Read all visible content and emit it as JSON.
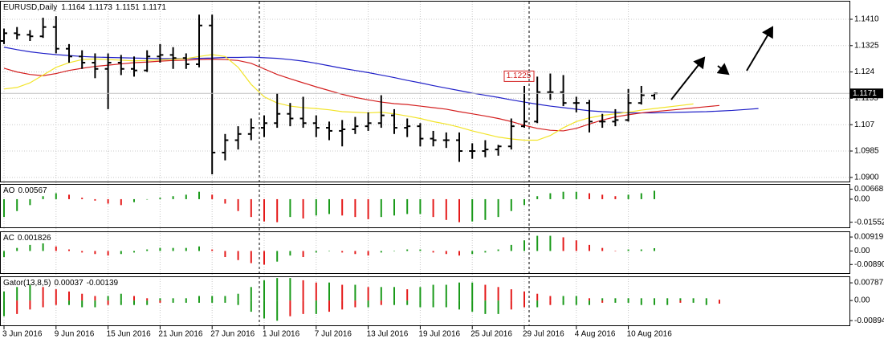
{
  "chart_data": [
    {
      "type": "ohlc",
      "title": "EURUSD,Daily",
      "categories": [
        "3 Jun 2016",
        null,
        null,
        null,
        "9 Jun 2016",
        null,
        null,
        null,
        "15 Jun 2016",
        null,
        null,
        null,
        "21 Jun 2016",
        null,
        null,
        null,
        "27 Jun 2016",
        null,
        null,
        null,
        "1 Jul 2016",
        null,
        null,
        null,
        "7 Jul 2016",
        null,
        null,
        null,
        "13 Jul 2016",
        null,
        null,
        null,
        "19 Jul 2016",
        null,
        null,
        null,
        "25 Jul 2016",
        null,
        null,
        null,
        "29 Jul 2016",
        null,
        null,
        null,
        "4 Aug 2016",
        null,
        null,
        null,
        "10 Aug 2016",
        null,
        null,
        null,
        null,
        null,
        null,
        null,
        null,
        null,
        null
      ],
      "ohlc": [
        [
          1.134,
          1.138,
          1.133,
          1.1365
        ],
        [
          1.1365,
          1.1385,
          1.1345,
          1.136
        ],
        [
          1.136,
          1.1375,
          1.134,
          1.1355
        ],
        [
          1.1355,
          1.1415,
          1.135,
          1.1385
        ],
        [
          1.1385,
          1.142,
          1.13,
          1.1315
        ],
        [
          1.1315,
          1.133,
          1.127,
          1.129
        ],
        [
          1.129,
          1.131,
          1.125,
          1.127
        ],
        [
          1.127,
          1.13,
          1.122,
          1.125
        ],
        [
          1.125,
          1.13,
          1.112,
          1.127
        ],
        [
          1.127,
          1.1295,
          1.123,
          1.125
        ],
        [
          1.125,
          1.129,
          1.1225,
          1.1245
        ],
        [
          1.1245,
          1.131,
          1.124,
          1.129
        ],
        [
          1.129,
          1.133,
          1.127,
          1.1295
        ],
        [
          1.1295,
          1.132,
          1.125,
          1.1285
        ],
        [
          1.1285,
          1.13,
          1.125,
          1.1265
        ],
        [
          1.1265,
          1.1425,
          1.1255,
          1.139
        ],
        [
          1.139,
          1.1425,
          1.091,
          1.098
        ],
        [
          1.098,
          1.104,
          1.0955,
          1.102
        ],
        [
          1.102,
          1.1065,
          1.099,
          1.104
        ],
        [
          1.104,
          1.109,
          1.102,
          1.106
        ],
        [
          1.106,
          1.11,
          1.103,
          1.1075
        ],
        [
          1.1075,
          1.117,
          1.106,
          1.1105
        ],
        [
          1.1105,
          1.114,
          1.1065,
          1.109
        ],
        [
          1.109,
          1.116,
          1.106,
          1.1075
        ],
        [
          1.1075,
          1.11,
          1.103,
          1.106
        ],
        [
          1.106,
          1.108,
          1.102,
          1.105
        ],
        [
          1.105,
          1.1085,
          1.1,
          1.1055
        ],
        [
          1.1055,
          1.1095,
          1.104,
          1.1065
        ],
        [
          1.1065,
          1.111,
          1.105,
          1.1075
        ],
        [
          1.1075,
          1.1165,
          1.106,
          1.11
        ],
        [
          1.11,
          1.112,
          1.104,
          1.106
        ],
        [
          1.106,
          1.109,
          1.103,
          1.1065
        ],
        [
          1.1065,
          1.1075,
          1.1,
          1.1025
        ],
        [
          1.1025,
          1.105,
          1.1,
          1.102
        ],
        [
          1.102,
          1.1045,
          1.0995,
          1.102
        ],
        [
          1.102,
          1.1045,
          1.095,
          1.0985
        ],
        [
          1.0985,
          1.101,
          1.096,
          1.0985
        ],
        [
          1.0985,
          1.102,
          1.0965,
          1.099
        ],
        [
          1.099,
          1.1005,
          1.097,
          1.1
        ],
        [
          1.1,
          1.109,
          1.099,
          1.1065
        ],
        [
          1.1065,
          1.1195,
          1.106,
          1.108
        ],
        [
          1.108,
          1.1225,
          1.1075,
          1.1175
        ],
        [
          1.1175,
          1.1235,
          1.115,
          1.1175
        ],
        [
          1.1175,
          1.123,
          1.113,
          1.114
        ],
        [
          1.114,
          1.116,
          1.111,
          1.114
        ],
        [
          1.114,
          1.115,
          1.1045,
          1.108
        ],
        [
          1.108,
          1.1105,
          1.106,
          1.108
        ],
        [
          1.108,
          1.112,
          1.1065,
          1.1085
        ],
        [
          1.1085,
          1.1185,
          1.108,
          1.114
        ],
        [
          1.114,
          1.1195,
          1.1135,
          1.1165
        ],
        [
          1.1164,
          1.1173,
          1.1151,
          1.1171
        ],
        null,
        null,
        null,
        null,
        null,
        null,
        null,
        null
      ],
      "series": [
        {
          "color": "#2020c8",
          "values": [
            1.132,
            1.1312,
            1.1305,
            1.13,
            1.1296,
            1.1293,
            1.129,
            1.1288,
            1.1287,
            1.1286,
            1.1285,
            1.1284,
            1.1283,
            1.1283,
            1.1283,
            1.1284,
            1.1285,
            1.1287,
            1.1287,
            1.1288,
            1.1286,
            1.1284,
            1.128,
            1.1275,
            1.1268,
            1.126,
            1.1252,
            1.1245,
            1.1238,
            1.123,
            1.1222,
            1.1213,
            1.1205,
            1.1196,
            1.1188,
            1.118,
            1.1172,
            1.1165,
            1.1158,
            1.115,
            1.1143,
            1.1136,
            1.113,
            1.1125,
            1.112,
            1.1115,
            1.1112,
            1.111,
            1.1108,
            1.1108,
            1.1108,
            1.1109,
            1.111,
            1.1111,
            1.1112,
            1.1114,
            1.1116,
            1.1119,
            1.1122
          ]
        },
        {
          "color": "#d42020",
          "values": [
            1.1252,
            1.124,
            1.1232,
            1.1228,
            1.1235,
            1.1245,
            1.1252,
            1.1258,
            1.1262,
            1.1266,
            1.127,
            1.1272,
            1.1275,
            1.1277,
            1.1278,
            1.128,
            1.1281,
            1.128,
            1.1277,
            1.1268,
            1.125,
            1.1232,
            1.1218,
            1.1205,
            1.1192,
            1.118,
            1.1168,
            1.1158,
            1.115,
            1.1143,
            1.1138,
            1.1135,
            1.113,
            1.1125,
            1.112,
            1.1112,
            1.1105,
            1.1098,
            1.109,
            1.108,
            1.1068,
            1.1058,
            1.1052,
            1.105,
            1.1058,
            1.1072,
            1.1085,
            1.1095,
            1.1102,
            1.1108,
            1.1112,
            1.1116,
            1.112,
            1.1124,
            1.1128,
            1.1132,
            null,
            null,
            null
          ]
        },
        {
          "color": "#f2e42a",
          "values": [
            1.1185,
            1.119,
            1.1205,
            1.123,
            1.1255,
            1.127,
            1.128,
            1.1282,
            1.128,
            1.1278,
            1.1276,
            1.1277,
            1.1279,
            1.1281,
            1.1283,
            1.129,
            1.1296,
            1.129,
            1.1255,
            1.12,
            1.116,
            1.114,
            1.113,
            1.1125,
            1.1122,
            1.1118,
            1.1112,
            1.111,
            1.1108,
            1.111,
            1.1105,
            1.1098,
            1.109,
            1.108,
            1.1072,
            1.1062,
            1.105,
            1.104,
            1.103,
            1.1024,
            1.102,
            1.102,
            1.1035,
            1.106,
            1.108,
            1.1092,
            1.11,
            1.1105,
            1.111,
            1.1117,
            1.1122,
            1.1127,
            1.1132,
            1.1137,
            null,
            null,
            null,
            null,
            null
          ]
        }
      ],
      "ylim": [
        1.0884,
        1.1467
      ],
      "yticks": [
        {
          "value": 1.141,
          "label": "1.1410"
        },
        1.1325,
        1.124,
        1.1155,
        1.107,
        1.0985,
        {
          "value": 1.09,
          "label": "1.0900"
        }
      ],
      "grid": true
    },
    {
      "type": "bar",
      "title": "AO",
      "up_color": "#1a9a1a",
      "down_color": "#e41a1a",
      "values": [
        -0.012,
        -0.008,
        -0.004,
        0.002,
        0.004,
        0.003,
        0.001,
        -0.001,
        -0.003,
        -0.004,
        -0.002,
        0,
        0.001,
        0.002,
        0.003,
        0.005,
        0.003,
        -0.003,
        -0.008,
        -0.012,
        -0.015,
        -0.0155,
        -0.012,
        -0.013,
        -0.011,
        -0.01,
        -0.011,
        -0.012,
        -0.0135,
        -0.012,
        -0.011,
        -0.01,
        -0.01,
        -0.012,
        -0.014,
        -0.0155,
        -0.015,
        -0.014,
        -0.012,
        -0.008,
        -0.004,
        0.002,
        0.004,
        0.005,
        0.005,
        0.004,
        0.003,
        0.002,
        0.003,
        0.004,
        0.00567,
        null,
        null,
        null,
        null,
        null,
        null,
        null,
        null
      ],
      "ylim": [
        -0.0195,
        0.0097
      ],
      "yticks": [
        0.00668,
        {
          "value": 0,
          "label": "0.00"
        },
        -0.01552
      ]
    },
    {
      "type": "bar",
      "title": "AC",
      "up_color": "#1a9a1a",
      "down_color": "#e41a1a",
      "values": [
        -0.004,
        0.002,
        0.004,
        0.005,
        0.003,
        0.001,
        -0.001,
        -0.002,
        -0.003,
        -0.002,
        -0.001,
        0.001,
        0.002,
        0.002,
        0.002,
        0.003,
        0.001,
        -0.004,
        -0.006,
        -0.008,
        -0.009,
        -0.007,
        -0.003,
        -0.004,
        -0.001,
        0,
        -0.001,
        -0.002,
        -0.003,
        -0.001,
        0,
        0.001,
        0.001,
        -0.001,
        -0.002,
        -0.003,
        -0.002,
        -0.001,
        0.001,
        0.004,
        0.007,
        0.01,
        0.01,
        0.009,
        0.007,
        0.004,
        0.002,
        0,
        0.001,
        0.001,
        0.001826,
        null,
        null,
        null,
        null,
        null,
        null,
        null,
        null
      ],
      "ylim": [
        -0.0151,
        0.0124
      ],
      "yticks": [
        0.00919,
        {
          "value": 0,
          "label": "0.00"
        },
        {
          "value": -0.0089,
          "label": "-0.00890"
        }
      ]
    },
    {
      "type": "bar",
      "title": "Gator(13,8,5)",
      "up_color": "#1a9a1a",
      "down_color": "#e41a1a",
      "series": [
        {
          "values": [
            0.004,
            0.006,
            0.007,
            0.006,
            0.005,
            0.004,
            0.003,
            0.002,
            0.002,
            0.003,
            0.002,
            0.001,
            0.001,
            0.001,
            0.001,
            0.002,
            0.002,
            0.002,
            0.003,
            0.006,
            0.009,
            0.01,
            0.01,
            0.009,
            0.008,
            0.008,
            0.007,
            0.007,
            0.006,
            0.006,
            0.006,
            0.005,
            0.006,
            0.007,
            0.007,
            0.008,
            0.008,
            0.007,
            0.006,
            0.005,
            0.004,
            0.003,
            0.002,
            0.002,
            0.002,
            0.001,
            0.001,
            0.001,
            0.001,
            0.001,
            0.001,
            0.001,
            0.001,
            0.001,
            0.001,
            0.00037,
            null,
            null,
            null
          ]
        },
        {
          "values": [
            -0.007,
            -0.006,
            -0.004,
            -0.003,
            -0.002,
            -0.002,
            -0.003,
            -0.003,
            -0.002,
            -0.002,
            -0.002,
            -0.002,
            -0.001,
            -0.001,
            -0.001,
            -0.001,
            -0.001,
            -0.001,
            -0.002,
            -0.005,
            -0.008,
            -0.009,
            -0.007,
            -0.006,
            -0.006,
            -0.005,
            -0.004,
            -0.003,
            -0.003,
            -0.002,
            -0.002,
            -0.002,
            -0.003,
            -0.003,
            -0.003,
            -0.004,
            -0.005,
            -0.006,
            -0.006,
            -0.004,
            -0.003,
            -0.003,
            -0.002,
            -0.002,
            -0.002,
            -0.002,
            -0.001,
            -0.001,
            -0.001,
            -0.002,
            -0.002,
            -0.002,
            -0.001,
            -0.001,
            -0.002,
            -0.00139,
            null,
            null,
            null
          ]
        }
      ],
      "ylim": [
        -0.0114,
        0.0104
      ],
      "yticks": [
        0.00787,
        {
          "value": 0,
          "label": "0.00"
        },
        -0.00894
      ]
    }
  ]
}
